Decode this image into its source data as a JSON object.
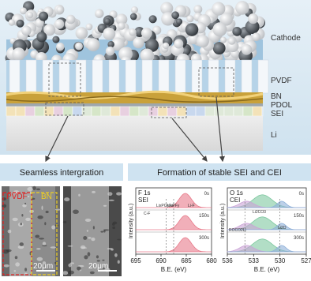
{
  "labels": {
    "cathode": "Cathode",
    "pvdf": "PVDF",
    "bn": "BN",
    "pdol": "PDOL",
    "sei": "SEI",
    "li": "Li"
  },
  "banners": [
    "Seamless intergration",
    "Formation of stable SEI and CEI"
  ],
  "sem": {
    "pvdf": "PVDF",
    "bn": "BN",
    "scale_bars": [
      "20μm",
      "20μm"
    ]
  },
  "xps": [
    {
      "title": "F 1s",
      "subtitle": "SEI",
      "times": [
        "0s",
        "150s",
        "300s"
      ],
      "peaks": [
        "C-F",
        "LixPOyFz",
        "LixPFy",
        "Li-F"
      ],
      "ticks": [
        695,
        690,
        685,
        680
      ],
      "xlabel": "B.E. (eV)",
      "ylabel": "Intensity (a.u.)"
    },
    {
      "title": "O 1s",
      "subtitle": "CEI",
      "times": [
        "0s",
        "150s",
        "300s"
      ],
      "peaks": [
        "ROCO2Li",
        "Li2CO3",
        "Li2O"
      ],
      "ticks": [
        536,
        533,
        530,
        527
      ],
      "xlabel": "B.E. (eV)",
      "ylabel": "Intensity (a.u.)"
    }
  ]
}
